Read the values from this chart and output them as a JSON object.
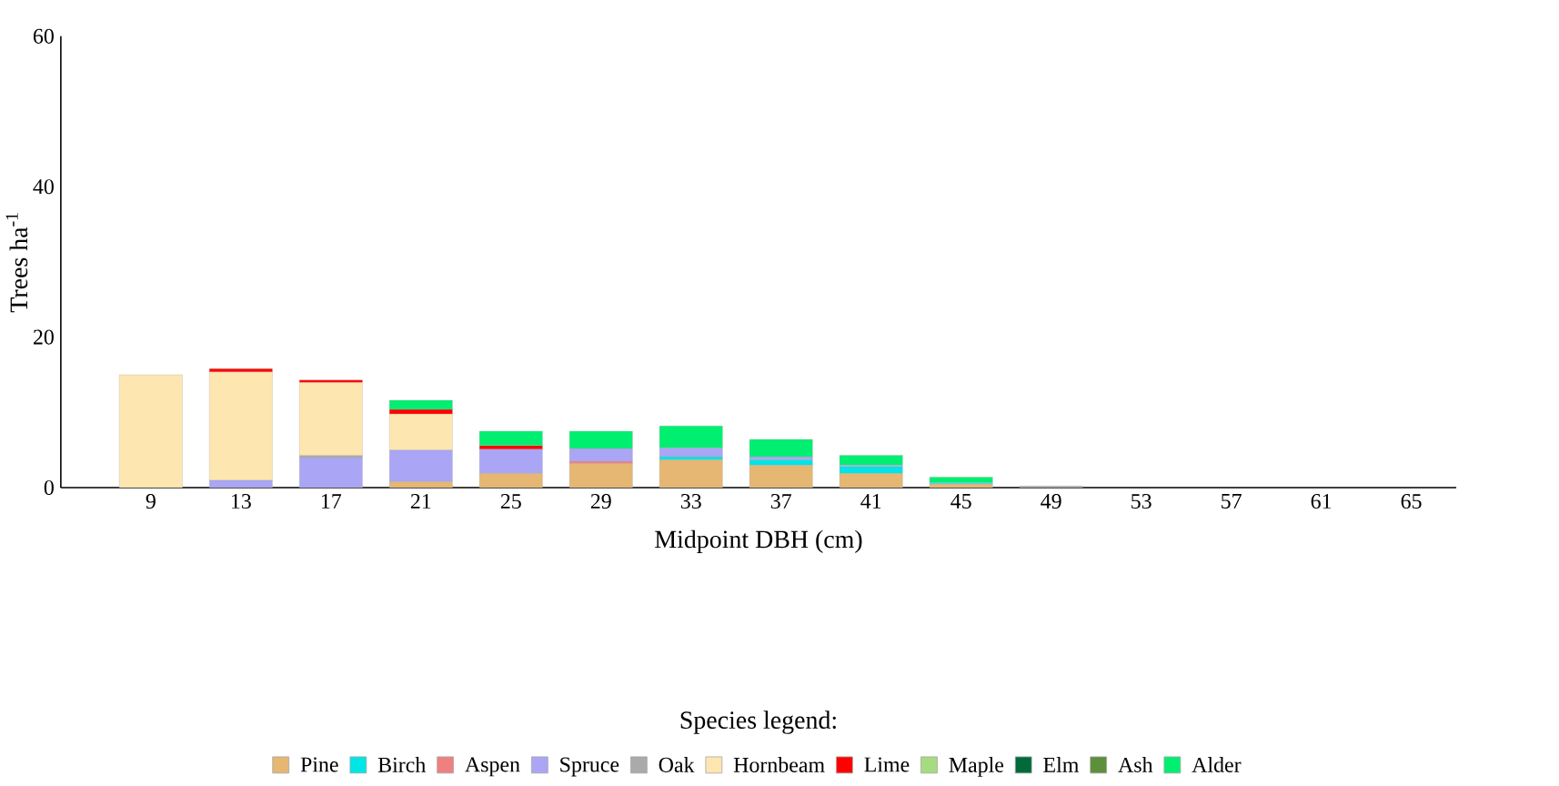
{
  "chart_data": {
    "type": "bar",
    "stacked": true,
    "xlabel": "Midpoint DBH (cm)",
    "ylabel": "Trees ha$^{-1}$",
    "legend_title": "Species legend:",
    "legend": "bottom",
    "categories": [
      "9",
      "13",
      "17",
      "21",
      "25",
      "29",
      "33",
      "37",
      "41",
      "45",
      "49",
      "53",
      "57",
      "61",
      "65"
    ],
    "ylim": [
      0,
      60
    ],
    "yticks": [
      0,
      20,
      40,
      60
    ],
    "series": [
      {
        "name": "Pine",
        "color": "#e6b673",
        "values": [
          null,
          null,
          null,
          0.8,
          1.9,
          3.2,
          3.7,
          3.0,
          1.9,
          0.5,
          null,
          null,
          null,
          null,
          null
        ]
      },
      {
        "name": "Birch",
        "color": "#00e5e5",
        "values": [
          null,
          null,
          null,
          null,
          null,
          null,
          0.4,
          0.7,
          0.9,
          0.2,
          null,
          null,
          null,
          null,
          null
        ]
      },
      {
        "name": "Aspen",
        "color": "#f08080",
        "values": [
          null,
          null,
          null,
          null,
          null,
          0.3,
          null,
          null,
          null,
          null,
          null,
          null,
          null,
          null,
          null
        ]
      },
      {
        "name": "Spruce",
        "color": "#aaa6f5",
        "values": [
          null,
          1.0,
          4.0,
          4.2,
          3.2,
          1.7,
          1.2,
          0.4,
          0.2,
          null,
          null,
          null,
          null,
          null,
          null
        ]
      },
      {
        "name": "Oak",
        "color": "#aaaaaa",
        "values": [
          null,
          null,
          0.3,
          null,
          null,
          null,
          null,
          null,
          null,
          null,
          0.2,
          null,
          null,
          null,
          null
        ]
      },
      {
        "name": "Hornbeam",
        "color": "#fde6b0",
        "values": [
          15.0,
          14.4,
          9.7,
          4.8,
          null,
          null,
          null,
          null,
          null,
          null,
          null,
          null,
          null,
          null,
          null
        ]
      },
      {
        "name": "Lime",
        "color": "#ff0000",
        "values": [
          null,
          0.4,
          0.3,
          0.6,
          0.5,
          null,
          null,
          null,
          null,
          null,
          null,
          null,
          null,
          null,
          null
        ]
      },
      {
        "name": "Maple",
        "color": "#a6db80",
        "values": [
          null,
          null,
          null,
          null,
          null,
          null,
          null,
          null,
          null,
          null,
          null,
          null,
          null,
          null,
          null
        ]
      },
      {
        "name": "Elm",
        "color": "#006a3a",
        "values": [
          null,
          null,
          null,
          null,
          null,
          null,
          null,
          null,
          null,
          null,
          null,
          null,
          null,
          null,
          null
        ]
      },
      {
        "name": "Ash",
        "color": "#5e8f3a",
        "values": [
          null,
          null,
          null,
          null,
          null,
          null,
          null,
          null,
          null,
          null,
          null,
          null,
          null,
          null,
          null
        ]
      },
      {
        "name": "Alder",
        "color": "#00ef70",
        "values": [
          null,
          null,
          null,
          1.2,
          1.9,
          2.3,
          2.9,
          2.3,
          1.3,
          0.7,
          null,
          null,
          null,
          null,
          null
        ]
      }
    ]
  }
}
